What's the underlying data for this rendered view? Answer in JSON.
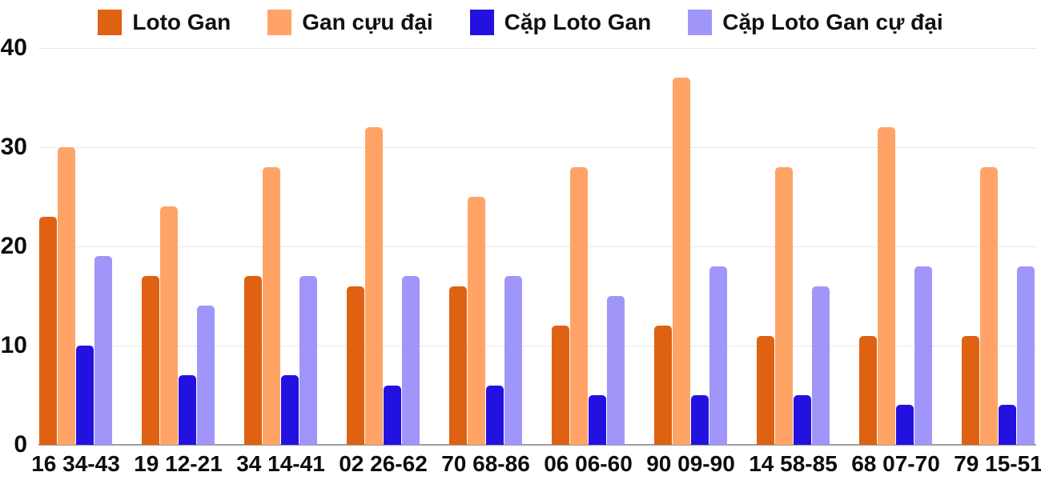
{
  "chart_data": {
    "type": "bar",
    "title": "",
    "xlabel": "",
    "ylabel": "",
    "ylim": [
      0,
      40
    ],
    "yticks": [
      0,
      10,
      20,
      30,
      40
    ],
    "grid": true,
    "legend_position": "top",
    "categories": [
      "16 34-43",
      "19 12-21",
      "34 14-41",
      "02 26-62",
      "70 68-86",
      "06 06-60",
      "90 09-90",
      "14 58-85",
      "68 07-70",
      "79 15-51"
    ],
    "series": [
      {
        "name": "Loto Gan",
        "color": "#de6212",
        "values": [
          23,
          17,
          17,
          16,
          16,
          12,
          12,
          11,
          11,
          11
        ]
      },
      {
        "name": "Gan cựu đại",
        "color": "#ffa466",
        "values": [
          30,
          24,
          28,
          32,
          25,
          28,
          37,
          28,
          32,
          28
        ]
      },
      {
        "name": "Cặp Loto Gan",
        "color": "#2311e0",
        "values": [
          10,
          7,
          7,
          6,
          6,
          5,
          5,
          5,
          4,
          4
        ]
      },
      {
        "name": "Cặp Loto Gan cự đại",
        "color": "#a096fa",
        "values": [
          19,
          14,
          17,
          17,
          17,
          15,
          18,
          16,
          18,
          18
        ]
      }
    ]
  },
  "style": {
    "gridline_color": "#e8e8e8",
    "axis_line_color": "#9e9e9e",
    "label_color": "#0d0d0d"
  }
}
